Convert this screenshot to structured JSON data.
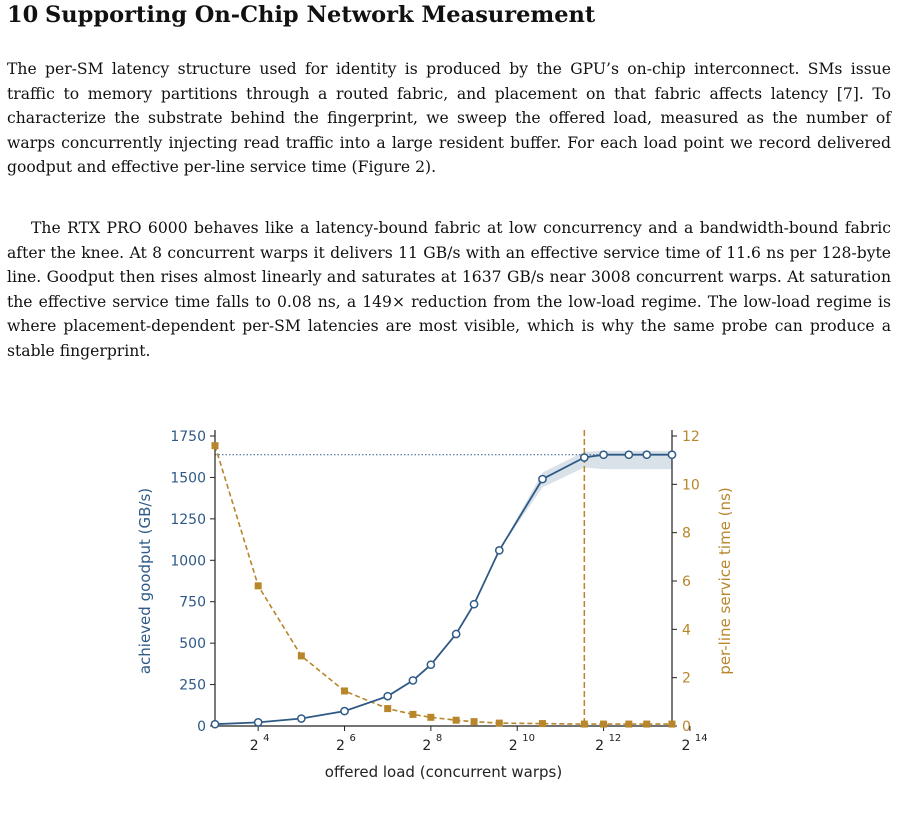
{
  "section": {
    "number": "10",
    "title": "Supporting On-Chip Network Measurement"
  },
  "paragraphs": [
    "The per-SM latency structure used for identity is produced by the GPU’s on-chip interconnect. SMs issue traffic to memory partitions through a routed fabric, and placement on that fabric affects latency [7]. To characterize the substrate behind the fingerprint, we sweep the offered load, measured as the number of warps concurrently injecting read traffic into a large resident buffer. For each load point we record delivered goodput and effective per-line service time (Figure 2).",
    "The RTX PRO 6000 behaves like a latency-bound fabric at low concurrency and a bandwidth-bound fabric after the knee. At 8 concurrent warps it delivers 11 GB/s with an effective service time of 11.6 ns per 128-byte line. Goodput then rises almost linearly and saturates at 1637 GB/s near 3008 concurrent warps. At saturation the effective service time falls to 0.08 ns, a 149× reduction from the low-load regime. The low-load regime is where placement-dependent per-SM latencies are most visible, which is why the same probe can produce a stable fingerprint."
  ],
  "chart_data": {
    "type": "line",
    "xlabel": "offered load (concurrent warps)",
    "ylabel_left": "achieved goodput (GB/s)",
    "ylabel_right": "per-line service time (ns)",
    "x_scale": "log2",
    "xlim": [
      8,
      12288
    ],
    "xticks": [
      16,
      64,
      256,
      1024,
      4096,
      16384
    ],
    "xtick_labels": [
      "2^4",
      "2^6",
      "2^8",
      "2^10",
      "2^12",
      "2^14"
    ],
    "ylim_left": [
      0,
      1750
    ],
    "yticks_left": [
      0,
      250,
      500,
      750,
      1000,
      1250,
      1500,
      1750
    ],
    "ylim_right": [
      0,
      12
    ],
    "yticks_right": [
      0,
      2,
      4,
      6,
      8,
      10,
      12
    ],
    "grid": false,
    "x": [
      8,
      16,
      32,
      64,
      128,
      192,
      256,
      384,
      512,
      768,
      1536,
      3008,
      4096,
      6144,
      8192,
      12288
    ],
    "series": [
      {
        "axis": "left",
        "color": "#2f5a86",
        "style": "solid, open circle markers",
        "values": [
          11,
          22,
          45,
          90,
          180,
          275,
          370,
          555,
          735,
          1060,
          1490,
          1620,
          1637,
          1637,
          1637,
          1637
        ],
        "band_low": [
          11,
          22,
          45,
          90,
          180,
          275,
          370,
          555,
          735,
          1060,
          1440,
          1560,
          1550,
          1550,
          1550,
          1550
        ],
        "band_high": [
          11,
          22,
          45,
          90,
          180,
          275,
          370,
          555,
          735,
          1060,
          1530,
          1655,
          1660,
          1660,
          1660,
          1660
        ]
      },
      {
        "axis": "right",
        "color": "#b8862b",
        "style": "dashed, square markers",
        "values": [
          11.6,
          5.8,
          2.9,
          1.45,
          0.72,
          0.48,
          0.36,
          0.24,
          0.18,
          0.12,
          0.1,
          0.08,
          0.08,
          0.08,
          0.08,
          0.08
        ]
      }
    ],
    "annotations": [
      {
        "type": "hline",
        "axis": "left",
        "y": 1637,
        "style": "dotted",
        "color": "#2f5a86"
      },
      {
        "type": "vline",
        "x": 3008,
        "style": "dashed",
        "color": "#b8862b"
      }
    ]
  }
}
